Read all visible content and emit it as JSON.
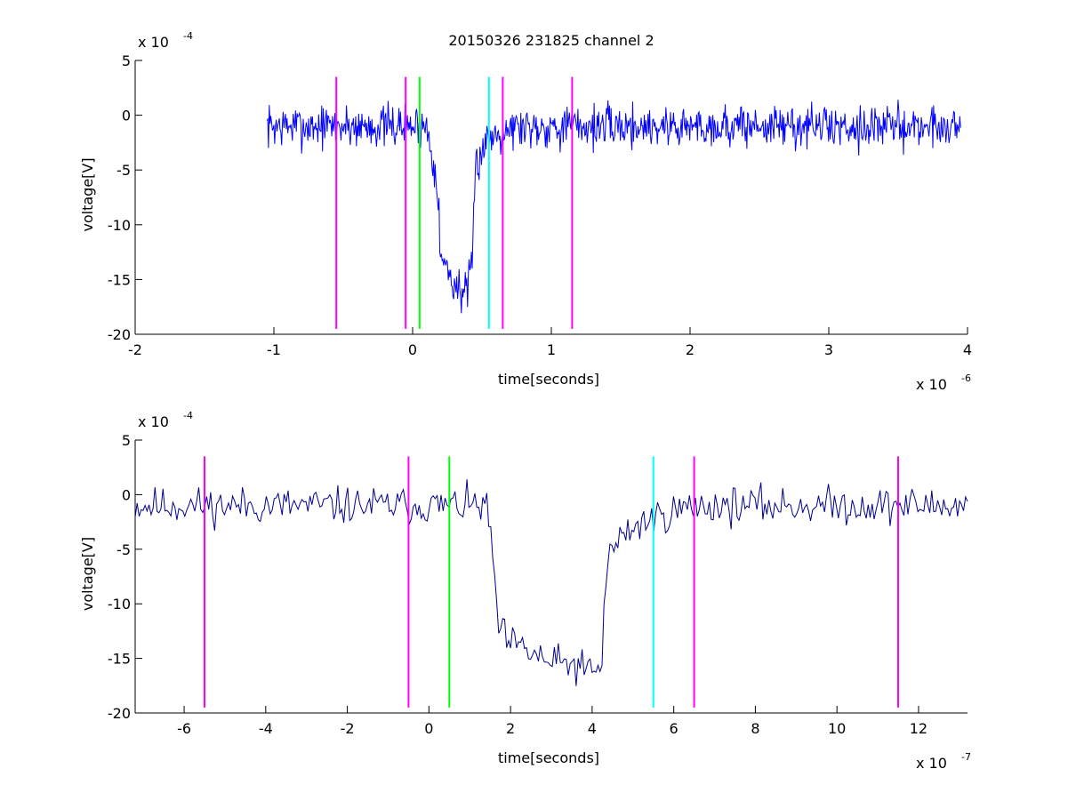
{
  "chart_data": [
    {
      "type": "line",
      "title": "20150326 231825 channel 2",
      "xlabel": "time[seconds]",
      "ylabel": "voltage[V]",
      "x_multiplier": "x 10",
      "x_exponent": "-6",
      "y_multiplier": "x 10",
      "y_exponent": "-4",
      "xlim": [
        -2,
        4
      ],
      "ylim": [
        -20,
        5
      ],
      "x_ticks": [
        "-2",
        "-1",
        "0",
        "1",
        "2",
        "3",
        "4"
      ],
      "y_ticks": [
        "5",
        "0",
        "-5",
        "-10",
        "-15",
        "-20"
      ],
      "signal": {
        "color": "#0000ff",
        "x_range": [
          -1.05,
          3.95
        ],
        "baseline": -1.0,
        "noise": 1.4,
        "seed": 7,
        "points": 900,
        "pulse": [
          [
            0.1,
            -1.0
          ],
          [
            0.18,
            -6
          ],
          [
            0.2,
            -13
          ],
          [
            0.25,
            -14
          ],
          [
            0.3,
            -15.5
          ],
          [
            0.35,
            -16
          ],
          [
            0.4,
            -16
          ],
          [
            0.43,
            -14
          ],
          [
            0.45,
            -5
          ],
          [
            0.5,
            -3
          ],
          [
            0.55,
            -2
          ],
          [
            0.65,
            -1.2
          ],
          [
            0.8,
            -1.0
          ]
        ]
      },
      "markers": [
        {
          "x": -0.55,
          "color": "#ff00ff"
        },
        {
          "x": -0.05,
          "color": "#ff00ff"
        },
        {
          "x": 0.05,
          "color": "#00ff00"
        },
        {
          "x": 0.55,
          "color": "#00ffff"
        },
        {
          "x": 0.65,
          "color": "#ff00ff"
        },
        {
          "x": 1.15,
          "color": "#ff00ff"
        }
      ],
      "marker_range": [
        -19.5,
        3.5
      ]
    },
    {
      "type": "line",
      "title": "",
      "xlabel": "time[seconds]",
      "ylabel": "voltage[V]",
      "x_multiplier": "x 10",
      "x_exponent": "-7",
      "y_multiplier": "x 10",
      "y_exponent": "-4",
      "xlim": [
        -7.2,
        13.2
      ],
      "ylim": [
        -20,
        5
      ],
      "x_ticks": [
        "-6",
        "-4",
        "-2",
        "0",
        "2",
        "4",
        "6",
        "8",
        "10",
        "12"
      ],
      "y_ticks": [
        "5",
        "0",
        "-5",
        "-10",
        "-15",
        "-20"
      ],
      "signal": {
        "color": "#00008b",
        "x_range": [
          -7.2,
          13.2
        ],
        "baseline": -1.0,
        "noise": 1.2,
        "seed": 11,
        "points": 420,
        "pulse": [
          [
            1.4,
            -1.0
          ],
          [
            1.55,
            -5
          ],
          [
            1.7,
            -12
          ],
          [
            1.9,
            -13.5
          ],
          [
            2.5,
            -14.5
          ],
          [
            3.0,
            -15.5
          ],
          [
            3.5,
            -15.5
          ],
          [
            4.1,
            -16.5
          ],
          [
            4.25,
            -15
          ],
          [
            4.3,
            -9
          ],
          [
            4.45,
            -5
          ],
          [
            5.0,
            -3
          ],
          [
            5.6,
            -2
          ],
          [
            6.2,
            -1.3
          ],
          [
            6.8,
            -1.0
          ]
        ]
      },
      "markers": [
        {
          "x": -5.5,
          "color": "#ff00ff"
        },
        {
          "x": -0.5,
          "color": "#ff00ff"
        },
        {
          "x": 0.5,
          "color": "#00ff00"
        },
        {
          "x": 5.5,
          "color": "#00ffff"
        },
        {
          "x": 6.5,
          "color": "#ff00ff"
        },
        {
          "x": 11.5,
          "color": "#ff00ff"
        }
      ],
      "marker_range": [
        -19.5,
        3.5
      ]
    }
  ]
}
